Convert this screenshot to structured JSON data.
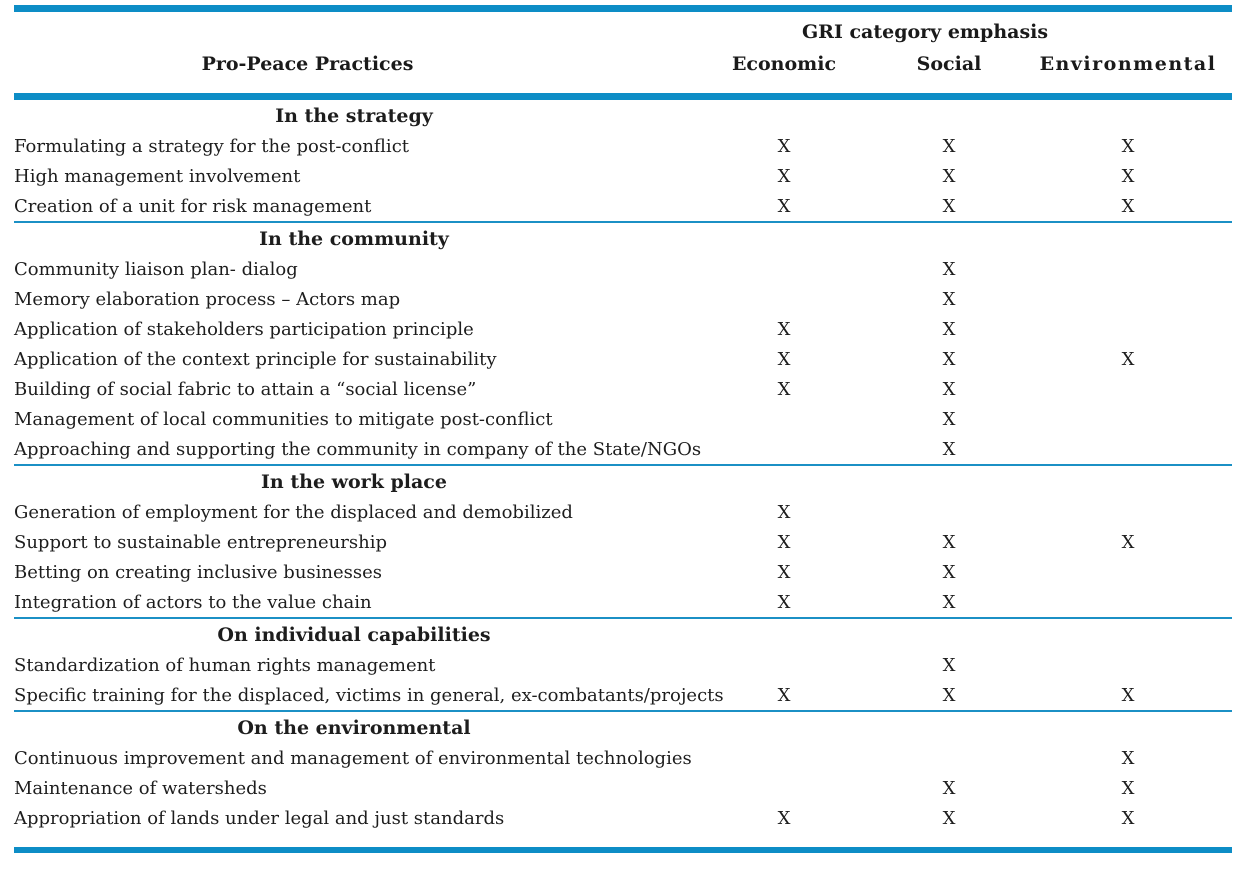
{
  "table": {
    "header": {
      "group_label": "GRI category emphasis",
      "practices_label": "Pro-Peace Practices",
      "categories": [
        "Economic",
        "Social",
        "Environmental"
      ]
    },
    "mark_symbol": "X",
    "colors": {
      "rule_blue": "#0d8dc6",
      "text": "#1d1d1d"
    },
    "sections": [
      {
        "title": "In the strategy",
        "rows": [
          {
            "practice": "Formulating a strategy for the post-conflict",
            "economic": "X",
            "social": "X",
            "environmental": "X"
          },
          {
            "practice": "High management involvement",
            "economic": "X",
            "social": "X",
            "environmental": "X"
          },
          {
            "practice": "Creation of a unit for risk management",
            "economic": "X",
            "social": "X",
            "environmental": "X"
          }
        ]
      },
      {
        "title": "In the community",
        "rows": [
          {
            "practice": "Community liaison plan- dialog",
            "economic": "",
            "social": "X",
            "environmental": ""
          },
          {
            "practice": "Memory elaboration process – Actors map",
            "economic": "",
            "social": "X",
            "environmental": ""
          },
          {
            "practice": "Application of stakeholders participation principle",
            "economic": "X",
            "social": "X",
            "environmental": ""
          },
          {
            "practice": "Application of the context principle for sustainability",
            "economic": "X",
            "social": "X",
            "environmental": "X"
          },
          {
            "practice": "Building of social fabric to attain a “social license”",
            "economic": "X",
            "social": "X",
            "environmental": ""
          },
          {
            "practice": "Management of local communities to mitigate post-conflict",
            "economic": "",
            "social": "X",
            "environmental": ""
          },
          {
            "practice": "Approaching and supporting the community in company of the State/NGOs",
            "economic": "",
            "social": "X",
            "environmental": ""
          }
        ]
      },
      {
        "title": "In the work place",
        "rows": [
          {
            "practice": "Generation of employment for the displaced and demobilized",
            "economic": "X",
            "social": "",
            "environmental": ""
          },
          {
            "practice": "Support to sustainable entrepreneurship",
            "economic": "X",
            "social": "X",
            "environmental": "X"
          },
          {
            "practice": "Betting on creating inclusive businesses",
            "economic": "X",
            "social": "X",
            "environmental": ""
          },
          {
            "practice": "Integration of actors to the value chain",
            "economic": "X",
            "social": "X",
            "environmental": ""
          }
        ]
      },
      {
        "title": "On individual capabilities",
        "rows": [
          {
            "practice": "Standardization of human rights management",
            "economic": "",
            "social": "X",
            "environmental": ""
          },
          {
            "practice": "Specific training for the displaced, victims in general, ex-combatants/projects",
            "economic": "X",
            "social": "X",
            "environmental": "X"
          }
        ]
      },
      {
        "title": "On the environmental",
        "rows": [
          {
            "practice": "Continuous improvement and management of environmental technologies",
            "economic": "",
            "social": "",
            "environmental": "X"
          },
          {
            "practice": "Maintenance of watersheds",
            "economic": "",
            "social": "X",
            "environmental": "X"
          },
          {
            "practice": "Appropriation of lands under legal and just standards",
            "economic": "X",
            "social": "X",
            "environmental": "X"
          }
        ]
      }
    ]
  }
}
